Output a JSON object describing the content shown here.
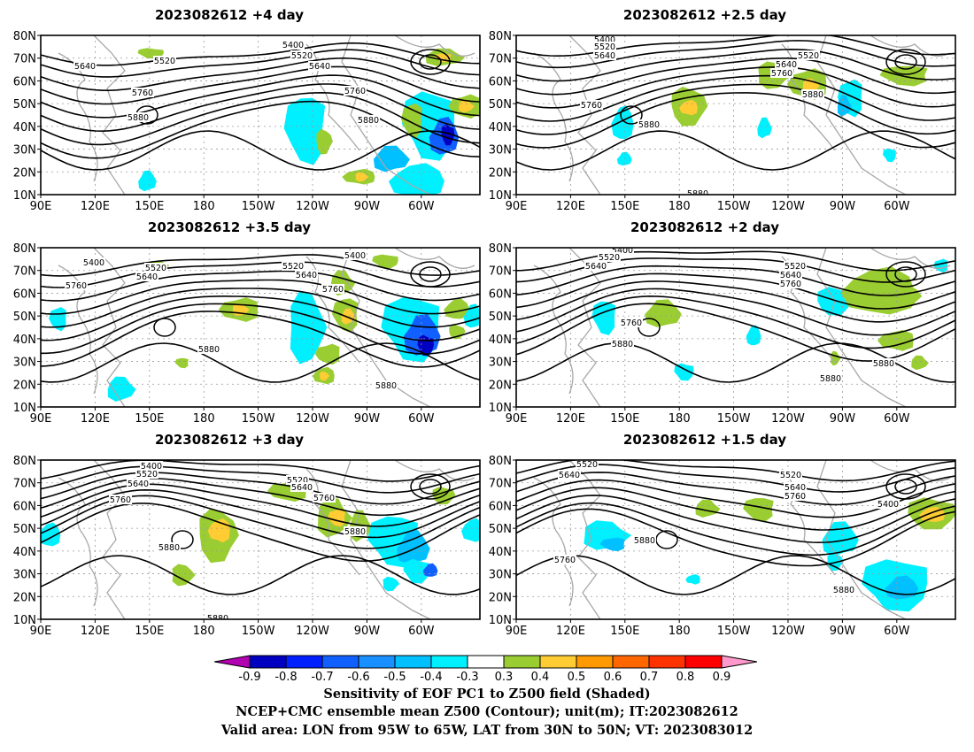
{
  "panels": [
    {
      "title": "2023082612  +4 day",
      "contour_labels": [
        "5400",
        "5520",
        "5640",
        "5640",
        "5520",
        "5760",
        "5760",
        "5880",
        "5880"
      ]
    },
    {
      "title": "2023082612  +2.5 day",
      "contour_labels": [
        "5400",
        "5520",
        "5640",
        "5520",
        "5640",
        "5760",
        "5880",
        "5760",
        "5880",
        "5880"
      ]
    },
    {
      "title": "2023082612  +3.5 day",
      "contour_labels": [
        "5400",
        "5520",
        "5640",
        "5520",
        "5640",
        "5400",
        "5760",
        "5760",
        "5880",
        "5880"
      ]
    },
    {
      "title": "2023082612  +2 day",
      "contour_labels": [
        "5400",
        "5520",
        "5640",
        "5520",
        "5640",
        "5760",
        "5760",
        "5880",
        "5880",
        "5880"
      ]
    },
    {
      "title": "2023082612  +3 day",
      "contour_labels": [
        "5400",
        "5520",
        "5640",
        "5760",
        "5520",
        "5640",
        "5760",
        "5880",
        "5880",
        "5880"
      ]
    },
    {
      "title": "2023082612  +1.5 day",
      "contour_labels": [
        "5520",
        "5640",
        "5520",
        "5640",
        "5760",
        "5400",
        "5880",
        "5760",
        "5880"
      ]
    }
  ],
  "axes": {
    "lat_ticks": [
      "80N",
      "70N",
      "60N",
      "50N",
      "40N",
      "30N",
      "20N",
      "10N"
    ],
    "lon_ticks": [
      "90E",
      "120E",
      "150E",
      "180",
      "150W",
      "120W",
      "90W",
      "60W"
    ]
  },
  "colorbar": {
    "labels": [
      "-0.9",
      "-0.8",
      "-0.7",
      "-0.6",
      "-0.5",
      "-0.4",
      "-0.3",
      "0.3",
      "0.4",
      "0.5",
      "0.6",
      "0.7",
      "0.8",
      "0.9"
    ],
    "colors": [
      "#0000c0",
      "#0020ff",
      "#1060ff",
      "#1890ff",
      "#00c0ff",
      "#00f0ff",
      "#ffffff",
      "#9acd32",
      "#ffcc33",
      "#ff9900",
      "#ff6600",
      "#ff3300",
      "#ff0000"
    ],
    "low_end_color": "#b000b0",
    "high_end_color": "#ff99cc"
  },
  "caption": {
    "line1": "Sensitivity of EOF PC1 to Z500 field (Shaded)",
    "line2": "NCEP+CMC ensemble mean Z500 (Contour); unit(m); IT:2023082612",
    "line3": "Valid area: LON from 95W to 65W, LAT from 30N to 50N; VT: 2023083012"
  },
  "colors": {
    "contour": "#000000",
    "coastline": "#a8a8a8",
    "grid": "#9a9a9a",
    "neg_light": "#00f0ff",
    "neg_mid": "#00c0ff",
    "neg_strong": "#1060ff",
    "neg_max": "#0000c0",
    "pos_light": "#9acd32",
    "pos_mid": "#ffcc33",
    "pos_strong": "#ff9900"
  }
}
